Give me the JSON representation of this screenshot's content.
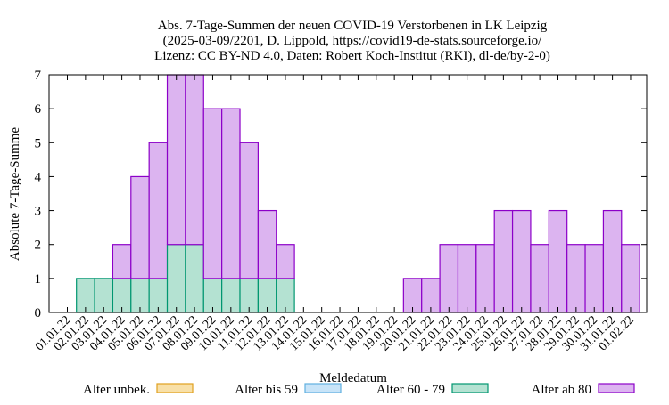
{
  "chart_data": {
    "type": "bar",
    "stacked": true,
    "title_lines": [
      "Abs. 7-Tage-Summen der neuen COVID-19 Verstorbenen in LK Leipzig",
      "(2025-03-09/2201, D. Lippold, https://covid19-de-stats.sourceforge.io/",
      "Lizenz: CC BY-ND 4.0, Daten: Robert Koch-Institut (RKI), dl-de/by-2-0)"
    ],
    "xlabel": "Meldedatum",
    "ylabel": "Absolute 7-Tage-Summe",
    "ylim": [
      0,
      7
    ],
    "yticks": [
      0,
      1,
      2,
      3,
      4,
      5,
      6,
      7
    ],
    "grid": false,
    "legend_position": "bottom",
    "categories": [
      "01.01.22",
      "02.01.22",
      "03.01.22",
      "04.01.22",
      "05.01.22",
      "06.01.22",
      "07.01.22",
      "08.01.22",
      "09.01.22",
      "10.01.22",
      "11.01.22",
      "12.01.22",
      "13.01.22",
      "14.01.22",
      "15.01.22",
      "16.01.22",
      "17.01.22",
      "18.01.22",
      "19.01.22",
      "20.01.22",
      "21.01.22",
      "22.01.22",
      "23.01.22",
      "24.01.22",
      "25.01.22",
      "26.01.22",
      "27.01.22",
      "28.01.22",
      "29.01.22",
      "30.01.22",
      "31.01.22",
      "01.02.22"
    ],
    "series": [
      {
        "name": "Alter unbek.",
        "color": "#f8e0a8",
        "stroke": "#e0a020",
        "values": [
          0,
          0,
          0,
          0,
          0,
          0,
          0,
          0,
          0,
          0,
          0,
          0,
          0,
          0,
          0,
          0,
          0,
          0,
          0,
          0,
          0,
          0,
          0,
          0,
          0,
          0,
          0,
          0,
          0,
          0,
          0,
          0
        ]
      },
      {
        "name": "Alter bis 59",
        "color": "#c8e4f8",
        "stroke": "#60b0e0",
        "values": [
          0,
          0,
          0,
          0,
          0,
          0,
          0,
          0,
          0,
          0,
          0,
          0,
          0,
          0,
          0,
          0,
          0,
          0,
          0,
          0,
          0,
          0,
          0,
          0,
          0,
          0,
          0,
          0,
          0,
          0,
          0,
          0
        ]
      },
      {
        "name": "Alter 60 - 79",
        "color": "#b4e2d2",
        "stroke": "#009670",
        "values": [
          0,
          1,
          1,
          1,
          1,
          1,
          2,
          2,
          1,
          1,
          1,
          1,
          1,
          0,
          0,
          0,
          0,
          0,
          0,
          0,
          0,
          0,
          0,
          0,
          0,
          0,
          0,
          0,
          0,
          0,
          0,
          0
        ]
      },
      {
        "name": "Alter ab 80",
        "color": "#dcb4f0",
        "stroke": "#8c00c8",
        "values": [
          0,
          0,
          0,
          1,
          3,
          4,
          5,
          5,
          5,
          5,
          4,
          2,
          1,
          0,
          0,
          0,
          0,
          0,
          0,
          1,
          1,
          2,
          2,
          2,
          3,
          3,
          2,
          3,
          2,
          2,
          3,
          2
        ]
      }
    ]
  }
}
